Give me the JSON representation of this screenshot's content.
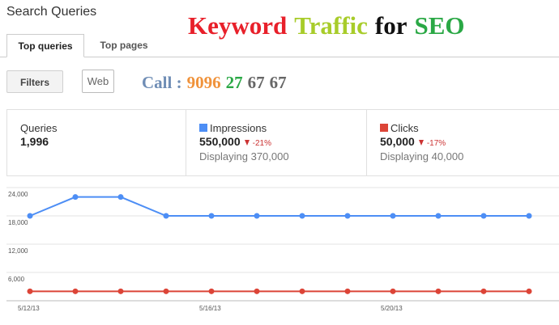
{
  "header": {
    "title": "Search Queries"
  },
  "overlay_title": [
    {
      "text": "Keyword",
      "color": "#e8202a"
    },
    {
      "text": "Traffic",
      "color": "#a8cc2a"
    },
    {
      "text": "for",
      "color": "#111111"
    },
    {
      "text": "SEO",
      "color": "#2aa845"
    }
  ],
  "tabs": [
    "Top queries",
    "Top pages"
  ],
  "filters": {
    "button": "Filters",
    "web": "Web"
  },
  "call": [
    {
      "text": "Call :",
      "color": "#6f8db5"
    },
    {
      "text": "9096",
      "color": "#f0923a"
    },
    {
      "text": "27",
      "color": "#2aa845"
    },
    {
      "text": "67",
      "color": "#666666"
    },
    {
      "text": "67",
      "color": "#666666"
    }
  ],
  "stats": [
    {
      "label": "Queries",
      "value": "1,996"
    },
    {
      "label": "Impressions",
      "value": "550,000",
      "change": "-21%",
      "display": "Displaying 370,000",
      "color": "#4d8ef5"
    },
    {
      "label": "Clicks",
      "value": "50,000",
      "change": "-17%",
      "display": "Displaying 40,000",
      "color": "#dc4437"
    }
  ],
  "chart_data": {
    "type": "line",
    "categories": [
      "5/12/13",
      null,
      null,
      null,
      "5/16/13",
      null,
      null,
      null,
      "5/20/13",
      null,
      null,
      null
    ],
    "series": [
      {
        "color": "#4d8ef5",
        "values": [
          18000,
          22000,
          22000,
          18000,
          18000,
          18000,
          18000,
          18000,
          18000,
          18000,
          18000,
          18000
        ]
      },
      {
        "color": "#dc4437",
        "values": [
          2000,
          2000,
          2000,
          2000,
          2000,
          2000,
          2000,
          2000,
          2000,
          2000,
          2000,
          2000
        ]
      }
    ],
    "ylim": [
      0,
      24000
    ],
    "yticks": [
      {
        "value": 6000,
        "label": "6,000"
      },
      {
        "value": 12000,
        "label": "12,000"
      },
      {
        "value": 18000,
        "label": "18,000"
      },
      {
        "value": 24000,
        "label": "24,000"
      }
    ],
    "grid": true
  }
}
